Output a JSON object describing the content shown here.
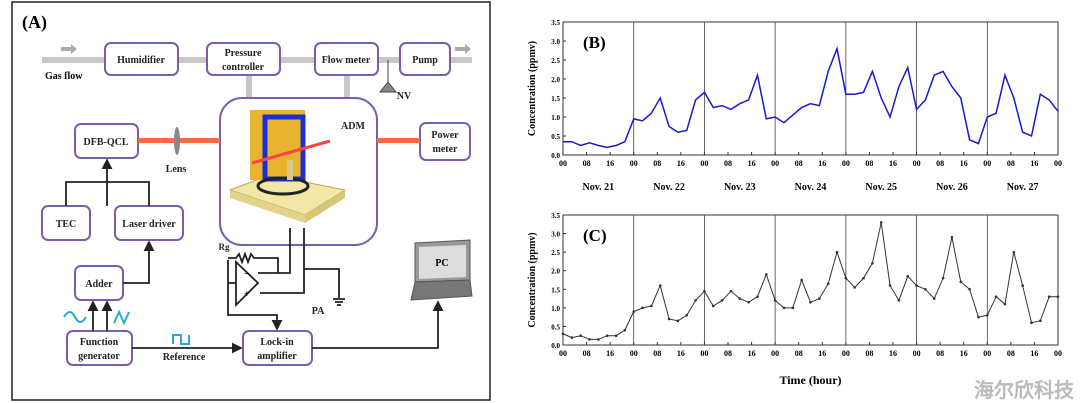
{
  "panel_a": {
    "label": "(A)",
    "gas_flow": "Gas flow",
    "humidifier": "Humidifier",
    "pressure_controller": [
      "Pressure",
      "controller"
    ],
    "flow_meter": "Flow meter",
    "pump": "Pump",
    "nv": "NV",
    "adm": "ADM",
    "dfb_qcl": "DFB-QCL",
    "lens": "Lens",
    "power_meter": [
      "Power",
      "meter"
    ],
    "tec": "TEC",
    "laser_driver": "Laser driver",
    "adder": "Adder",
    "function_generator": [
      "Function",
      "generator"
    ],
    "reference": "Reference",
    "lock_in": [
      "Lock-in",
      "amplifier"
    ],
    "rg": "Rg",
    "pa": "PA",
    "pc": "PC",
    "colors": {
      "box_border": "#7b5ea7",
      "laser": "#ff6a3d",
      "waveform": "#29a8d8",
      "pipe": "#c8c8c8"
    }
  },
  "watermark": "海尔欣科技",
  "chart_data": [
    {
      "type": "line",
      "panel_label": "(B)",
      "ylabel": "Concentration (ppmv)",
      "ylim": [
        0,
        3.5
      ],
      "yticks": [
        "0.0",
        "0.5",
        "1.0",
        "1.5",
        "2.0",
        "2.5",
        "3.0",
        "3.5"
      ],
      "xlim": [
        0,
        168
      ],
      "xticks": [
        "00",
        "08",
        "16",
        "00",
        "08",
        "16",
        "00",
        "08",
        "16",
        "00",
        "08",
        "16",
        "00",
        "08",
        "16",
        "00",
        "08",
        "16",
        "00",
        "08",
        "16",
        "00"
      ],
      "day_labels": [
        "Nov. 21",
        "Nov. 22",
        "Nov. 23",
        "Nov. 24",
        "Nov. 25",
        "Nov. 26",
        "Nov. 27"
      ],
      "color": "#1a1acc",
      "x_step_hours": 3,
      "values": [
        0.35,
        0.35,
        0.25,
        0.32,
        0.25,
        0.2,
        0.25,
        0.35,
        0.95,
        0.9,
        1.1,
        1.5,
        0.75,
        0.6,
        0.65,
        1.45,
        1.65,
        1.25,
        1.3,
        1.2,
        1.35,
        1.45,
        2.1,
        0.95,
        1.0,
        0.85,
        1.05,
        1.25,
        1.35,
        1.3,
        2.2,
        2.8,
        1.6,
        1.6,
        1.65,
        2.2,
        1.5,
        1.0,
        1.8,
        2.3,
        1.2,
        1.45,
        2.1,
        2.2,
        1.8,
        1.5,
        0.4,
        0.3,
        1.0,
        1.1,
        2.1,
        1.5,
        0.6,
        0.5,
        1.6,
        1.45,
        1.15
      ]
    },
    {
      "type": "line",
      "panel_label": "(C)",
      "ylabel": "Concentration (ppmv)",
      "xlabel": "Time (hour)",
      "ylim": [
        0,
        3.5
      ],
      "yticks": [
        "0.0",
        "0.5",
        "1.0",
        "1.5",
        "2.0",
        "2.5",
        "3.0",
        "3.5"
      ],
      "xlim": [
        0,
        168
      ],
      "xticks": [
        "00",
        "08",
        "16",
        "00",
        "08",
        "16",
        "00",
        "08",
        "16",
        "00",
        "08",
        "16",
        "00",
        "08",
        "16",
        "00",
        "08",
        "16",
        "00",
        "08",
        "16",
        "00"
      ],
      "color": "#333333",
      "x_step_hours": 3,
      "values": [
        0.3,
        0.2,
        0.25,
        0.15,
        0.15,
        0.25,
        0.25,
        0.4,
        0.9,
        1.0,
        1.05,
        1.6,
        0.7,
        0.65,
        0.8,
        1.2,
        1.45,
        1.05,
        1.2,
        1.45,
        1.25,
        1.15,
        1.3,
        1.9,
        1.2,
        1.0,
        1.0,
        1.75,
        1.15,
        1.25,
        1.65,
        2.5,
        1.8,
        1.55,
        1.8,
        2.2,
        3.3,
        1.6,
        1.2,
        1.85,
        1.6,
        1.5,
        1.25,
        1.8,
        2.9,
        1.7,
        1.5,
        0.75,
        0.8,
        1.3,
        1.1,
        2.5,
        1.6,
        0.6,
        0.65,
        1.3,
        1.3
      ]
    }
  ]
}
